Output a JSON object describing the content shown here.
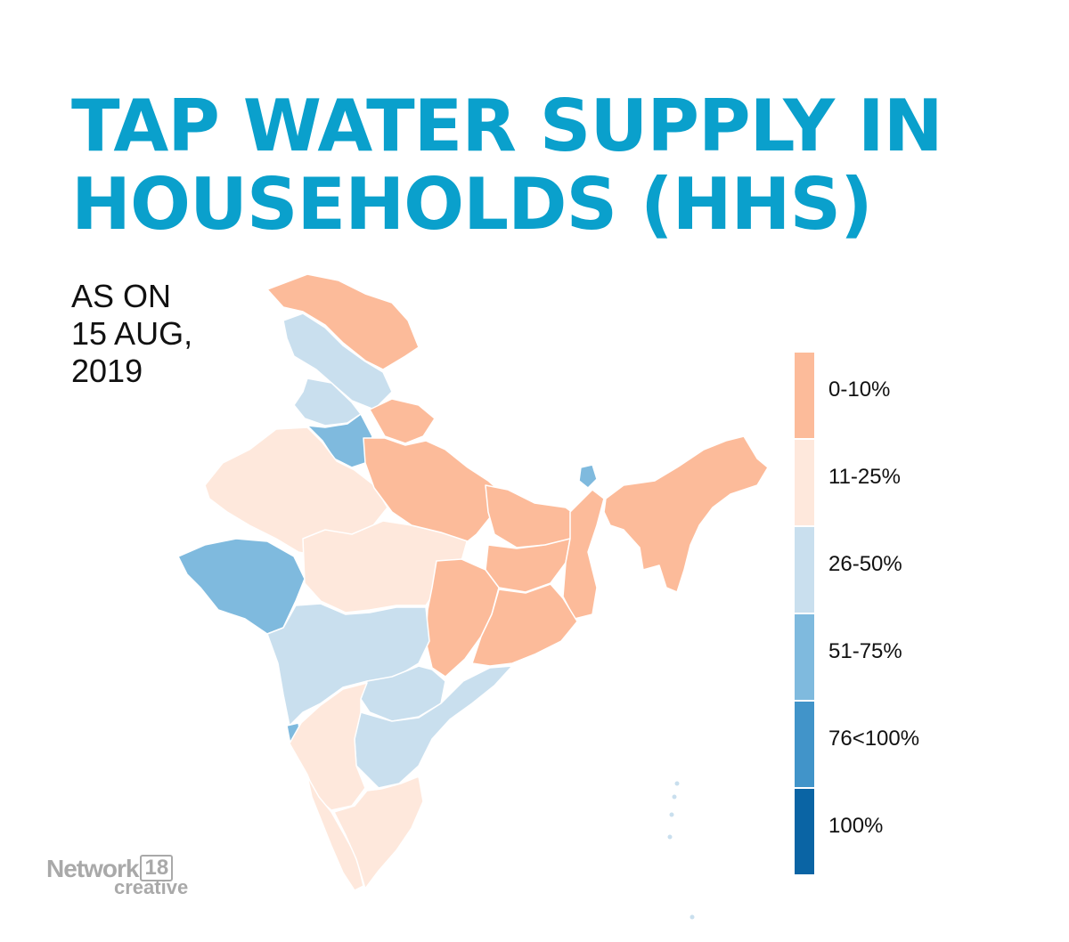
{
  "header": {
    "title_line1": "TAP WATER SUPPLY IN",
    "title_line2": "HOUSEHOLDS (HHS)",
    "date_line1": "AS ON",
    "date_line2": "15 AUG,",
    "date_line3": "2019"
  },
  "legend": [
    {
      "label": "0-10%",
      "color": "#fcbb9a"
    },
    {
      "label": "11-25%",
      "color": "#fee8dc"
    },
    {
      "label": "26-50%",
      "color": "#c9dfee"
    },
    {
      "label": "51-75%",
      "color": "#7fbade"
    },
    {
      "label": "76<100%",
      "color": "#4194c9"
    },
    {
      "label": "100%",
      "color": "#0a64a4"
    }
  ],
  "regions": [
    {
      "id": "jammu-kashmir",
      "category": "0-10%"
    },
    {
      "id": "himachal-pradesh",
      "category": "26-50%"
    },
    {
      "id": "punjab",
      "category": "26-50%"
    },
    {
      "id": "haryana",
      "category": "51-75%"
    },
    {
      "id": "uttarakhand",
      "category": "0-10%"
    },
    {
      "id": "rajasthan",
      "category": "11-25%"
    },
    {
      "id": "gujarat",
      "category": "51-75%"
    },
    {
      "id": "madhya-pradesh",
      "category": "11-25%"
    },
    {
      "id": "uttar-pradesh",
      "category": "0-10%"
    },
    {
      "id": "bihar",
      "category": "0-10%"
    },
    {
      "id": "sikkim",
      "category": "51-75%"
    },
    {
      "id": "jharkhand",
      "category": "0-10%"
    },
    {
      "id": "west-bengal",
      "category": "0-10%"
    },
    {
      "id": "chhattisgarh",
      "category": "0-10%"
    },
    {
      "id": "odisha",
      "category": "0-10%"
    },
    {
      "id": "maharashtra",
      "category": "26-50%"
    },
    {
      "id": "telangana",
      "category": "26-50%"
    },
    {
      "id": "andhra-pradesh",
      "category": "26-50%"
    },
    {
      "id": "goa",
      "category": "51-75%"
    },
    {
      "id": "karnataka",
      "category": "11-25%"
    },
    {
      "id": "kerala",
      "category": "11-25%"
    },
    {
      "id": "tamil-nadu",
      "category": "11-25%"
    },
    {
      "id": "north-east",
      "category": "0-10%"
    }
  ],
  "brand": {
    "name": "Network",
    "number": "18",
    "sub": "creative"
  }
}
